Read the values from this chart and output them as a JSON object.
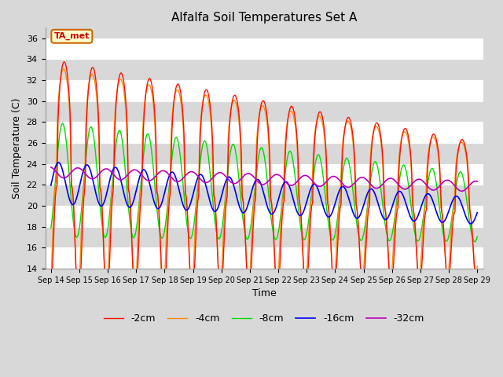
{
  "title": "Alfalfa Soil Temperatures Set A",
  "xlabel": "Time",
  "ylabel": "Soil Temperature (C)",
  "ylim": [
    14,
    37
  ],
  "yticks": [
    14,
    16,
    18,
    20,
    22,
    24,
    26,
    28,
    30,
    32,
    34,
    36
  ],
  "annotation": "TA_met",
  "annotation_color": "#cc0000",
  "annotation_bg": "#ffffcc",
  "annotation_border": "#cc6600",
  "colors": {
    "-2cm": "#ff1100",
    "-4cm": "#ff8800",
    "-8cm": "#00dd00",
    "-16cm": "#0000ff",
    "-32cm": "#bb00bb"
  },
  "background_color": "#d8d8d8",
  "plot_bg": "#d8d8d8",
  "grid_color": "#ffffff",
  "start_day": 14,
  "end_day": 29,
  "num_points": 480
}
